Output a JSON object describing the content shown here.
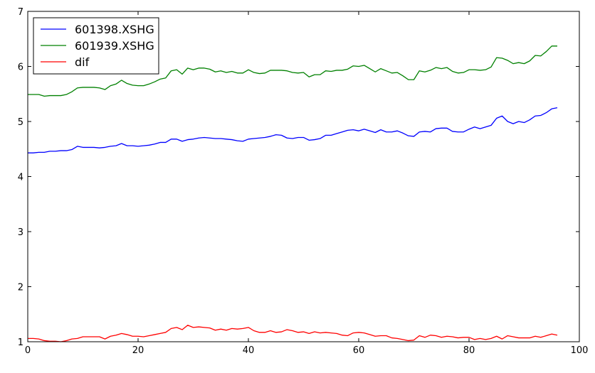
{
  "chart_data": {
    "type": "line",
    "xlim": [
      0,
      100
    ],
    "ylim": [
      1,
      7
    ],
    "xticks": [
      "0",
      "20",
      "40",
      "60",
      "80",
      "100"
    ],
    "yticks": [
      "1",
      "2",
      "3",
      "4",
      "5",
      "6",
      "7"
    ],
    "grid": false,
    "legend_position": "top-left",
    "x": [
      0,
      1,
      2,
      3,
      4,
      5,
      6,
      7,
      8,
      9,
      10,
      11,
      12,
      13,
      14,
      15,
      16,
      17,
      18,
      19,
      20,
      21,
      22,
      23,
      24,
      25,
      26,
      27,
      28,
      29,
      30,
      31,
      32,
      33,
      34,
      35,
      36,
      37,
      38,
      39,
      40,
      41,
      42,
      43,
      44,
      45,
      46,
      47,
      48,
      49,
      50,
      51,
      52,
      53,
      54,
      55,
      56,
      57,
      58,
      59,
      60,
      61,
      62,
      63,
      64,
      65,
      66,
      67,
      68,
      69,
      70,
      71,
      72,
      73,
      74,
      75,
      76,
      77,
      78,
      79,
      80,
      81,
      82,
      83,
      84,
      85,
      86,
      87,
      88,
      89,
      90,
      91,
      92,
      93,
      94,
      95,
      96
    ],
    "series": [
      {
        "name": "601398.XSHG",
        "color": "#0000ff",
        "values": [
          4.43,
          4.43,
          4.44,
          4.44,
          4.46,
          4.46,
          4.47,
          4.47,
          4.49,
          4.55,
          4.53,
          4.53,
          4.53,
          4.52,
          4.53,
          4.55,
          4.56,
          4.6,
          4.56,
          4.56,
          4.55,
          4.56,
          4.57,
          4.59,
          4.62,
          4.62,
          4.68,
          4.68,
          4.64,
          4.67,
          4.68,
          4.7,
          4.71,
          4.7,
          4.69,
          4.69,
          4.68,
          4.67,
          4.65,
          4.64,
          4.68,
          4.69,
          4.7,
          4.71,
          4.73,
          4.76,
          4.75,
          4.7,
          4.69,
          4.71,
          4.71,
          4.66,
          4.67,
          4.69,
          4.75,
          4.75,
          4.78,
          4.81,
          4.84,
          4.85,
          4.83,
          4.86,
          4.83,
          4.8,
          4.85,
          4.81,
          4.81,
          4.83,
          4.79,
          4.74,
          4.73,
          4.81,
          4.82,
          4.81,
          4.87,
          4.88,
          4.88,
          4.82,
          4.81,
          4.81,
          4.86,
          4.9,
          4.87,
          4.9,
          4.93,
          5.06,
          5.1,
          5.0,
          4.96,
          5.0,
          4.98,
          5.03,
          5.1,
          5.11,
          5.16,
          5.23,
          5.25
        ]
      },
      {
        "name": "601939.XSHG",
        "color": "#008000",
        "values": [
          5.49,
          5.49,
          5.49,
          5.46,
          5.47,
          5.47,
          5.47,
          5.49,
          5.54,
          5.61,
          5.62,
          5.62,
          5.62,
          5.61,
          5.58,
          5.65,
          5.68,
          5.75,
          5.69,
          5.66,
          5.65,
          5.65,
          5.68,
          5.72,
          5.77,
          5.79,
          5.92,
          5.94,
          5.86,
          5.97,
          5.94,
          5.97,
          5.97,
          5.95,
          5.9,
          5.92,
          5.89,
          5.91,
          5.88,
          5.88,
          5.94,
          5.89,
          5.87,
          5.88,
          5.93,
          5.93,
          5.93,
          5.92,
          5.89,
          5.88,
          5.89,
          5.81,
          5.85,
          5.85,
          5.92,
          5.91,
          5.93,
          5.93,
          5.95,
          6.01,
          6.0,
          6.02,
          5.96,
          5.9,
          5.96,
          5.92,
          5.88,
          5.89,
          5.83,
          5.76,
          5.76,
          5.92,
          5.9,
          5.93,
          5.98,
          5.96,
          5.98,
          5.91,
          5.88,
          5.89,
          5.94,
          5.94,
          5.93,
          5.94,
          5.99,
          6.16,
          6.15,
          6.11,
          6.05,
          6.07,
          6.05,
          6.1,
          6.2,
          6.19,
          6.27,
          6.37,
          6.37
        ]
      },
      {
        "name": "dif",
        "color": "#ff0000",
        "values": [
          1.06,
          1.06,
          1.05,
          1.02,
          1.01,
          1.01,
          1.0,
          1.02,
          1.05,
          1.06,
          1.09,
          1.09,
          1.09,
          1.09,
          1.05,
          1.1,
          1.12,
          1.15,
          1.13,
          1.1,
          1.1,
          1.09,
          1.11,
          1.13,
          1.15,
          1.17,
          1.24,
          1.26,
          1.22,
          1.3,
          1.26,
          1.27,
          1.26,
          1.25,
          1.21,
          1.23,
          1.21,
          1.24,
          1.23,
          1.24,
          1.26,
          1.2,
          1.17,
          1.17,
          1.2,
          1.17,
          1.18,
          1.22,
          1.2,
          1.17,
          1.18,
          1.15,
          1.18,
          1.16,
          1.17,
          1.16,
          1.15,
          1.12,
          1.11,
          1.16,
          1.17,
          1.16,
          1.13,
          1.1,
          1.11,
          1.11,
          1.07,
          1.06,
          1.04,
          1.02,
          1.03,
          1.11,
          1.08,
          1.12,
          1.11,
          1.08,
          1.1,
          1.09,
          1.07,
          1.08,
          1.08,
          1.04,
          1.06,
          1.04,
          1.06,
          1.1,
          1.05,
          1.11,
          1.09,
          1.07,
          1.07,
          1.07,
          1.1,
          1.08,
          1.11,
          1.14,
          1.12
        ]
      }
    ]
  }
}
